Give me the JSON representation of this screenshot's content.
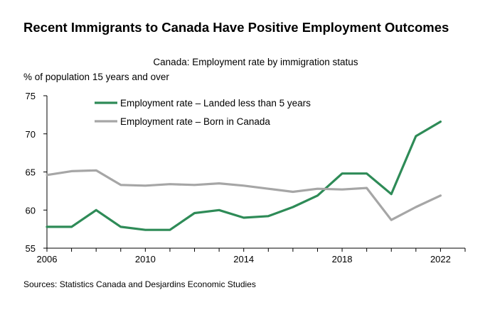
{
  "colors": {
    "landed": "#2e8b57",
    "born": "#a6a6a6",
    "axis": "#000000"
  },
  "chart_data": {
    "type": "line",
    "title": "Recent Immigrants to Canada Have Positive Employment Outcomes",
    "subtitle": "Canada: Employment rate by immigration status",
    "ylabel": "% of population 15 years and over",
    "xlabel": "",
    "source": "Sources: Statistics Canada and Desjardins Economic Studies",
    "ylim": [
      55,
      75
    ],
    "yticks": [
      55,
      60,
      65,
      70,
      75
    ],
    "xlim": [
      2006,
      2023
    ],
    "xticks": [
      2006,
      2010,
      2014,
      2018,
      2022
    ],
    "x": [
      2006,
      2007,
      2008,
      2009,
      2010,
      2011,
      2012,
      2013,
      2014,
      2015,
      2016,
      2017,
      2018,
      2019,
      2020,
      2021,
      2022
    ],
    "series": [
      {
        "name": "Employment rate – Landed less than 5 years",
        "color_key": "landed",
        "values": [
          57.8,
          57.8,
          60.0,
          57.8,
          57.4,
          57.4,
          59.6,
          60.0,
          59.0,
          59.2,
          60.4,
          61.9,
          64.8,
          64.8,
          62.1,
          69.7,
          71.6
        ]
      },
      {
        "name": "Employment rate – Born in Canada",
        "color_key": "born",
        "values": [
          64.6,
          65.1,
          65.2,
          63.3,
          63.2,
          63.4,
          63.3,
          63.5,
          63.2,
          62.8,
          62.4,
          62.8,
          62.7,
          62.9,
          58.7,
          60.4,
          61.9
        ]
      }
    ],
    "legend": "top-left"
  }
}
